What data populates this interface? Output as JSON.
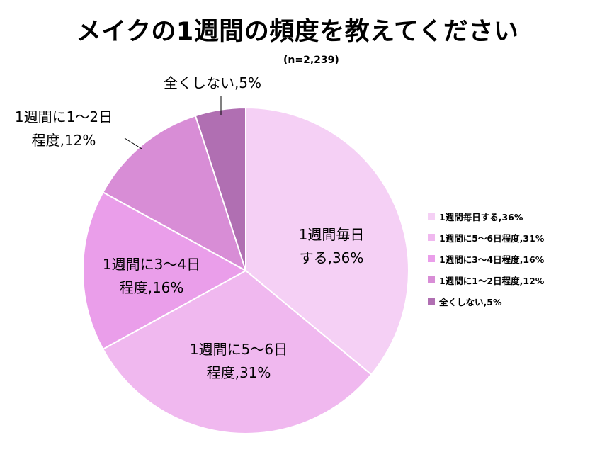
{
  "chart_data": {
    "type": "pie",
    "title": "メイクの1週間の頻度を教えてください",
    "subtitle": "(n=2,239)",
    "slices": [
      {
        "name": "1週間毎日する",
        "value": 36,
        "label_lines": [
          "1週間毎日",
          "する,36%"
        ],
        "legend": "1週間毎日する,36%",
        "color": "#f5d0f5"
      },
      {
        "name": "1週間に5～6日程度",
        "value": 31,
        "label_lines": [
          "1週間に5～6日",
          "程度,31%"
        ],
        "legend": "1週間に5～6日程度,31%",
        "color": "#f0b8ef"
      },
      {
        "name": "1週間に3～4日程度",
        "value": 16,
        "label_lines": [
          "1週間に3～4日",
          "程度,16%"
        ],
        "legend": "1週間に3～4日程度,16%",
        "color": "#ea9eea"
      },
      {
        "name": "1週間に1～2日程度",
        "value": 12,
        "label_lines": [
          "1週間に1～2日",
          "程度,12%"
        ],
        "legend": "1週間に1～2日程度,12%",
        "color": "#d88dd6"
      },
      {
        "name": "全くしない",
        "value": 5,
        "label_lines": [
          "全くしない,5%"
        ],
        "legend": "全くしない,5%",
        "color": "#b06fb2"
      }
    ],
    "legend_position": "right"
  }
}
